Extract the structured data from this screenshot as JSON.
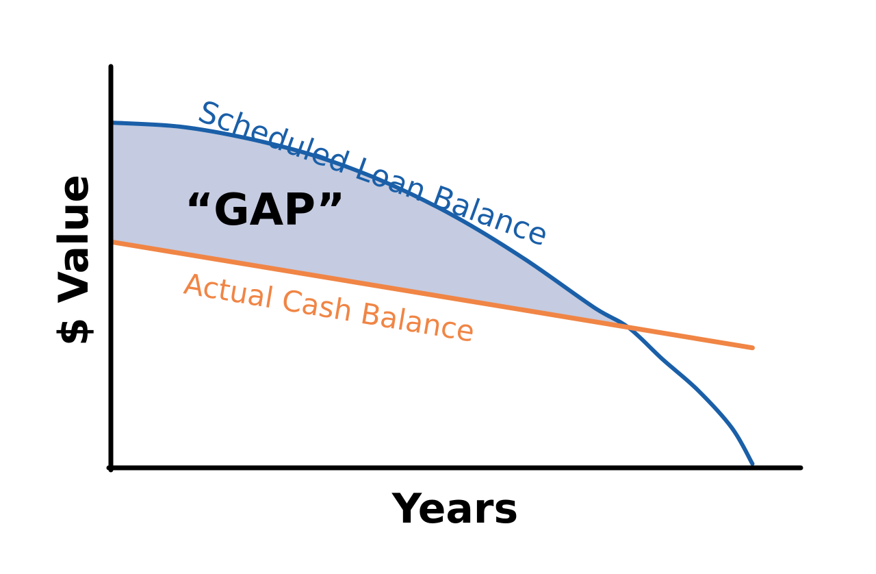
{
  "chart_data": {
    "type": "area",
    "title": "",
    "xlabel": "Years",
    "ylabel": "$ Value",
    "xlim": [
      0,
      10
    ],
    "ylim": [
      0,
      100
    ],
    "grid": false,
    "ticks": false,
    "series": [
      {
        "name": "Scheduled Loan Balance",
        "color": "#1a5fa8",
        "x": [
          0,
          1,
          2,
          3,
          4,
          5,
          6,
          7,
          7.5,
          8,
          8.5,
          9,
          9.3
        ],
        "y": [
          86,
          85,
          82,
          77.5,
          71,
          62.5,
          52,
          40,
          35,
          27,
          19.5,
          10,
          1
        ]
      },
      {
        "name": "Actual Cash Balance",
        "color": "#f08545",
        "x": [
          0,
          9.3
        ],
        "y": [
          56.3,
          29.9
        ]
      }
    ],
    "shaded_region": {
      "label": "“GAP”",
      "between": [
        "Scheduled Loan Balance",
        "Actual Cash Balance"
      ],
      "color": "#c5cbe0"
    }
  }
}
